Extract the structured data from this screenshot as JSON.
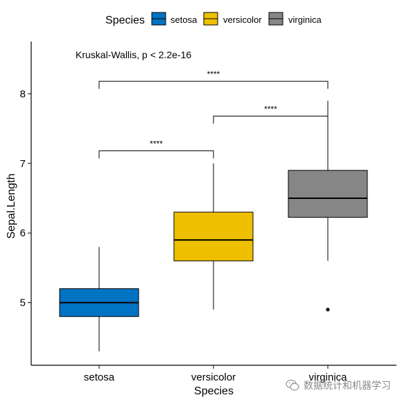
{
  "chart_data": {
    "type": "boxplot",
    "title": "",
    "xlabel": "Species",
    "ylabel": "Sepal.Length",
    "categories": [
      "setosa",
      "versicolor",
      "virginica"
    ],
    "ylim": [
      4.1,
      8.75
    ],
    "yticks": [
      5,
      6,
      7,
      8
    ],
    "grid": false,
    "legend": {
      "title": "Species",
      "position": "top",
      "entries": [
        "setosa",
        "versicolor",
        "virginica"
      ]
    },
    "colors": [
      "#0073C2",
      "#EFC000",
      "#868686"
    ],
    "boxes": [
      {
        "category": "setosa",
        "min": 4.3,
        "q1": 4.8,
        "median": 5.0,
        "q3": 5.2,
        "max": 5.8,
        "outliers": []
      },
      {
        "category": "versicolor",
        "min": 4.9,
        "q1": 5.6,
        "median": 5.9,
        "q3": 6.3,
        "max": 7.0,
        "outliers": []
      },
      {
        "category": "virginica",
        "min": 5.6,
        "q1": 6.225,
        "median": 6.5,
        "q3": 6.9,
        "max": 7.9,
        "outliers": [
          4.9
        ]
      }
    ],
    "annotations": [
      {
        "text": "Kruskal-Wallis, p < 2.2e-16"
      }
    ],
    "comparisons": [
      {
        "from": "setosa",
        "to": "versicolor",
        "y": 7.18,
        "label": "****"
      },
      {
        "from": "versicolor",
        "to": "virginica",
        "y": 7.68,
        "label": "****"
      },
      {
        "from": "setosa",
        "to": "virginica",
        "y": 8.18,
        "label": "****"
      }
    ]
  },
  "watermark": {
    "text": "数据统计和机器学习",
    "icon": "wechat-icon"
  }
}
